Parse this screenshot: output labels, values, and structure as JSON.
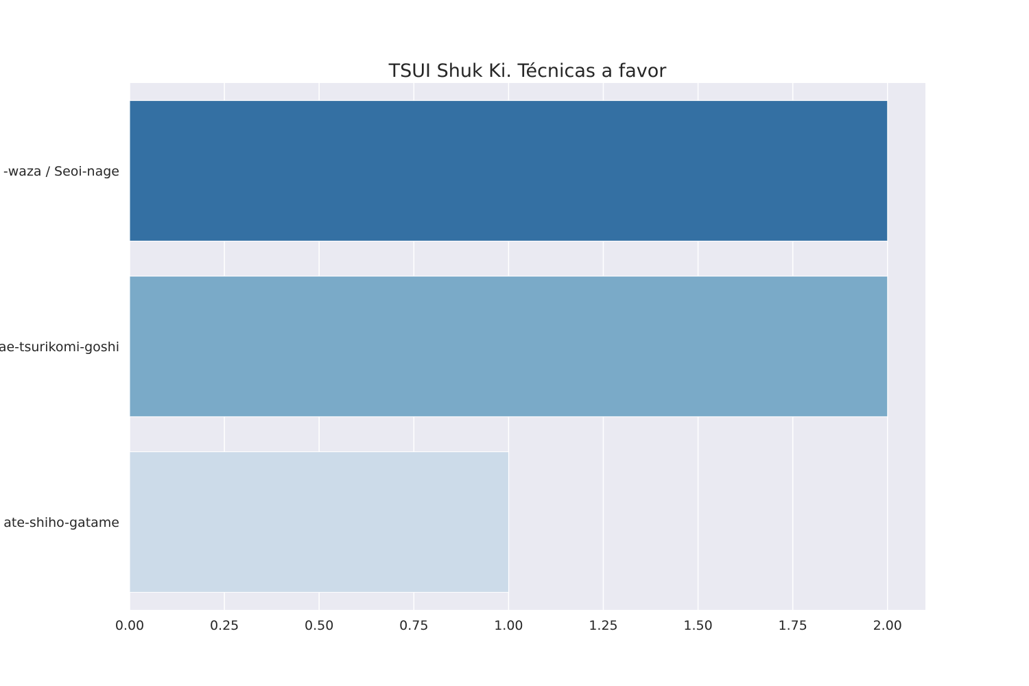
{
  "chart_data": {
    "type": "bar",
    "orientation": "horizontal",
    "title": "TSUI Shuk Ki. Técnicas a favor",
    "xlabel": "",
    "ylabel": "",
    "categories": [
      "-waza / Seoi-nage",
      "ae-tsurikomi-goshi",
      "ate-shiho-gatame"
    ],
    "values": [
      2,
      2,
      1
    ],
    "bar_colors": [
      "#3470a3",
      "#7aaac8",
      "#ccdbe9"
    ],
    "xlim": [
      0,
      2.1
    ],
    "xticks": [
      0,
      0.25,
      0.5,
      0.75,
      1.0,
      1.25,
      1.5,
      1.75,
      2.0
    ],
    "xtick_labels": [
      "0.00",
      "0.25",
      "0.50",
      "0.75",
      "1.00",
      "1.25",
      "1.50",
      "1.75",
      "2.00"
    ],
    "grid": true,
    "background": "#eaeaf2",
    "grid_color": "#ffffff"
  }
}
